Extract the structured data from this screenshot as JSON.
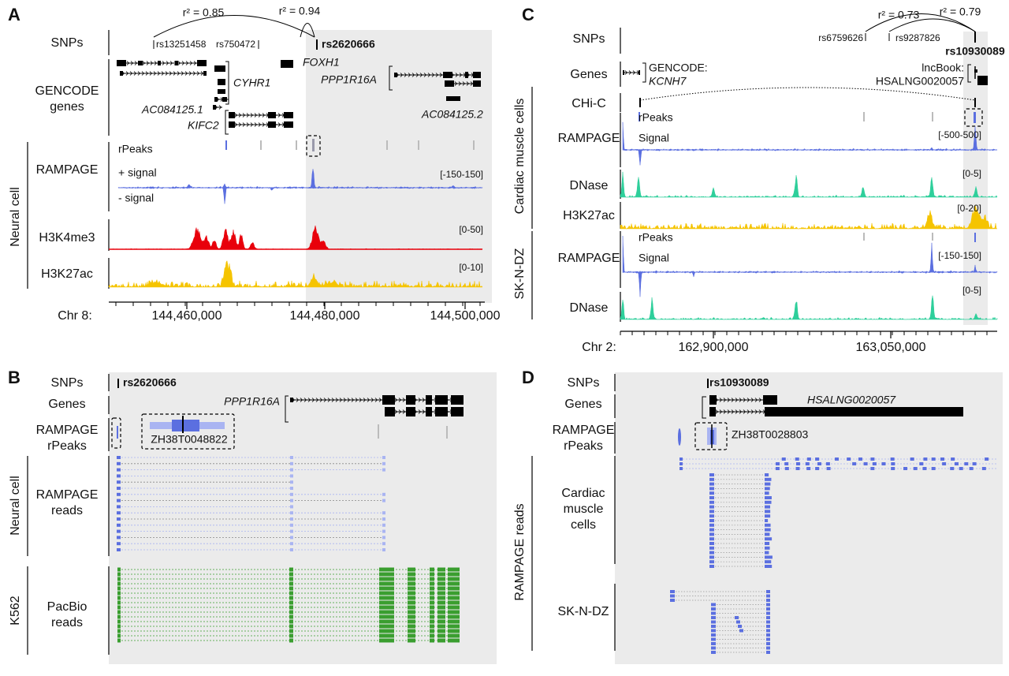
{
  "panel_a": {
    "label": "A",
    "ld": [
      "r² = 0.85",
      "r² = 0.94"
    ],
    "snps": [
      "rs13251458",
      "rs750472",
      "rs2620666"
    ],
    "track_labels": [
      "SNPs",
      [
        "GENCODE",
        "genes"
      ],
      "RAMPAGE",
      "H3K4me3",
      "H3K27ac"
    ],
    "genes": [
      "CYHR1",
      "FOXH1",
      "PPP1R16A",
      "AC084125.1",
      "AC084125.2",
      "KIFC2"
    ],
    "sample": "Neural cell",
    "rampage_sublabels": [
      "rPeaks",
      "+ signal",
      "- signal"
    ],
    "ranges": [
      "[-150-150]",
      "[0-50]",
      "[0-10]"
    ],
    "axis": {
      "chrom": "Chr 8:",
      "ticks": [
        "144,460,000",
        "144,480,000",
        "144,500,000"
      ]
    }
  },
  "panel_b": {
    "label": "B",
    "snp": "rs2620666",
    "track_labels": [
      "SNPs",
      "Genes",
      [
        "RAMPAGE",
        "rPeaks"
      ],
      [
        "RAMPAGE",
        "reads"
      ],
      [
        "PacBio",
        "reads"
      ]
    ],
    "gene": "PPP1R16A",
    "peak": "ZH38T0048822",
    "samples": [
      "Neural cell",
      "K562"
    ]
  },
  "panel_c": {
    "label": "C",
    "ld": [
      "r² = 0.73",
      "r² = 0.79"
    ],
    "snps": [
      "rs6759626",
      "rs9287826",
      "rs10930089"
    ],
    "track_labels": [
      "SNPs",
      "Genes",
      "CHi-C",
      "RAMPAGE",
      "DNase",
      "H3K27ac",
      "RAMPAGE",
      "DNase"
    ],
    "gene_labels": {
      "gencode": [
        "GENCODE:",
        "KCNH7"
      ],
      "lncbook": [
        "lncBook:",
        "HSALNG0020057"
      ]
    },
    "samples": [
      "Cardiac muscle cells",
      "SK-N-DZ"
    ],
    "rampage_sublabels": [
      [
        "rPeaks",
        "Signal"
      ],
      [
        "rPeaks",
        "Signal"
      ]
    ],
    "ranges": [
      "[-500-500]",
      "[0-5]",
      "[0-20]",
      "[-150-150]",
      "[0-5]"
    ],
    "axis": {
      "chrom": "Chr 2:",
      "ticks": [
        "162,900,000",
        "163,050,000"
      ]
    }
  },
  "panel_d": {
    "label": "D",
    "snp": "rs10930089",
    "track_labels": [
      "SNPs",
      "Genes",
      [
        "RAMPAGE",
        "rPeaks"
      ]
    ],
    "gene": "HSALNG0020057",
    "peak": "ZH38T0028803",
    "reads_label": "RAMPAGE reads",
    "samples": [
      [
        "Cardiac",
        "muscle",
        "cells"
      ],
      "SK-N-DZ"
    ]
  }
}
